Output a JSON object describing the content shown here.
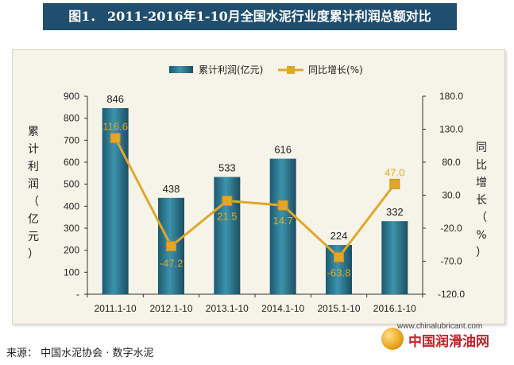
{
  "title": "图1．  2011-2016年1-10月全国水泥行业度累计利润总额对比",
  "source": "来源：  中国水泥协会 · 数字水泥",
  "site": "www.chinalubricant.com",
  "logo_text": "中国润滑油网",
  "chart_data": {
    "type": "bar+line",
    "categories": [
      "2011.1-10",
      "2012.1-10",
      "2013.1-10",
      "2014.1-10",
      "2015.1-10",
      "2016.1-10"
    ],
    "series": [
      {
        "name": "累计利润(亿元)",
        "type": "bar",
        "axis": "left",
        "values": [
          846,
          438,
          533,
          616,
          224,
          332
        ],
        "color": "#2f7f98"
      },
      {
        "name": "同比增长(%)",
        "type": "line",
        "axis": "right",
        "values": [
          116.6,
          -47.2,
          21.5,
          14.7,
          -63.8,
          47.0
        ],
        "color": "#e1a72a"
      }
    ],
    "bar_labels": [
      "846",
      "438",
      "533",
      "616",
      "224",
      "332"
    ],
    "line_labels": [
      "116.6",
      "-47.2",
      "21.5",
      "14.7",
      "-63.8",
      "47.0"
    ],
    "ylabel": "累计利润（亿元）",
    "y2label": "同比增长（%）",
    "ylim": [
      0,
      900
    ],
    "y2lim": [
      -120,
      180
    ],
    "yticks": [
      "-",
      "100",
      "200",
      "300",
      "400",
      "500",
      "600",
      "700",
      "800",
      "900"
    ],
    "y2ticks": [
      "-120.0",
      "-70.0",
      "-20.0",
      "30.0",
      "80.0",
      "130.0",
      "180.0"
    ],
    "legend_position": "top",
    "grid": false
  }
}
